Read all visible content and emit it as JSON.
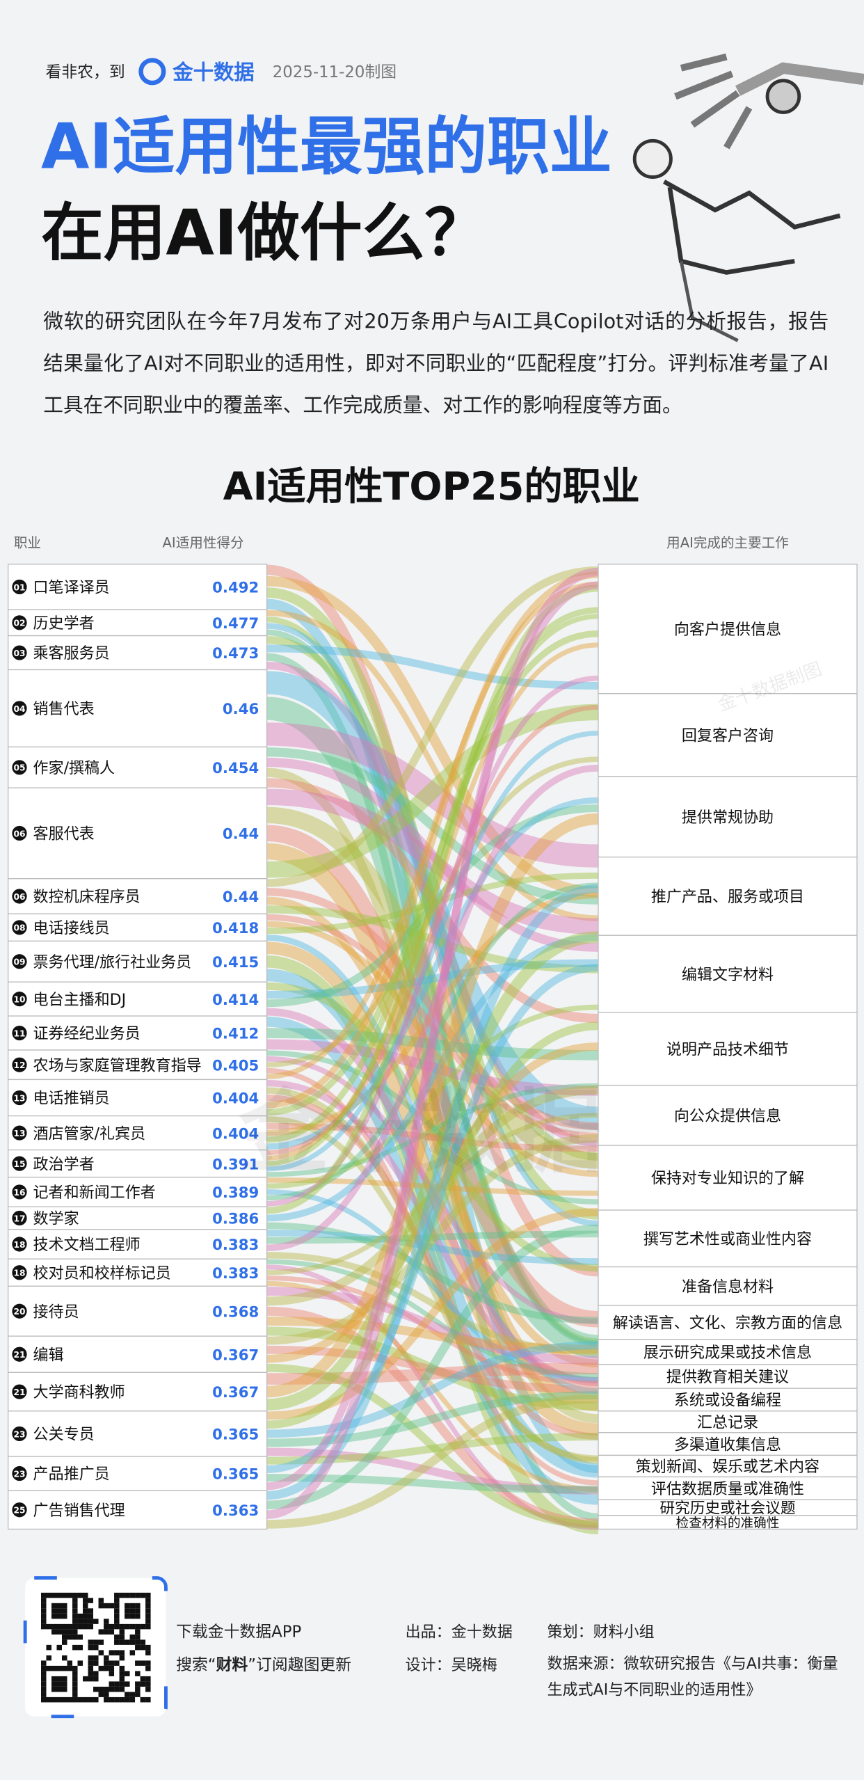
{
  "header": {
    "prefix": "看非农，到",
    "brand": "金十数据",
    "date": "2025-11-20制图"
  },
  "title": {
    "line1": "AI适用性最强的职业",
    "line2": "在用AI做什么？"
  },
  "description": "微软的研究团队在今年7月发布了对20万条用户与AI工具Copilot对话的分析报告，报告结果量化了AI对不同职业的适用性，即对不同职业的“匹配程度”打分。评判标准考量了AI工具在不同职业中的覆盖率、工作完成质量、对工作的影响程度等方面。",
  "chart": {
    "title": "AI适用性TOP25的职业",
    "occupation_header": "职业",
    "score_header": "AI适用性得分",
    "task_header": "用AI完成的主要工作",
    "occupations": [
      {
        "rank": "01",
        "name": "口笔译译员",
        "score": 0.492
      },
      {
        "rank": "02",
        "name": "历史学者",
        "score": 0.477
      },
      {
        "rank": "03",
        "name": "乘客服务员",
        "score": 0.473
      },
      {
        "rank": "04",
        "name": "销售代表",
        "score": 0.46
      },
      {
        "rank": "05",
        "name": "作家/撰稿人",
        "score": 0.454
      },
      {
        "rank": "06",
        "name": "客服代表",
        "score": 0.44
      },
      {
        "rank": "06",
        "name": "数控机床程序员",
        "score": 0.44
      },
      {
        "rank": "08",
        "name": "电话接线员",
        "score": 0.418
      },
      {
        "rank": "09",
        "name": "票务代理/旅行社业务员",
        "score": 0.415
      },
      {
        "rank": "10",
        "name": "电台主播和DJ",
        "score": 0.414
      },
      {
        "rank": "11",
        "name": "证券经纪业务员",
        "score": 0.412
      },
      {
        "rank": "12",
        "name": "农场与家庭管理教育指导",
        "score": 0.405
      },
      {
        "rank": "13",
        "name": "电话推销员",
        "score": 0.404
      },
      {
        "rank": "13",
        "name": "酒店管家/礼宾员",
        "score": 0.404
      },
      {
        "rank": "15",
        "name": "政治学者",
        "score": 0.391
      },
      {
        "rank": "16",
        "name": "记者和新闻工作者",
        "score": 0.389
      },
      {
        "rank": "17",
        "name": "数学家",
        "score": 0.386
      },
      {
        "rank": "18",
        "name": "技术文档工程师",
        "score": 0.383
      },
      {
        "rank": "18",
        "name": "校对员和校样标记员",
        "score": 0.383
      },
      {
        "rank": "20",
        "name": "接待员",
        "score": 0.368
      },
      {
        "rank": "21",
        "name": "编辑",
        "score": 0.367
      },
      {
        "rank": "21",
        "name": "大学商科教师",
        "score": 0.367
      },
      {
        "rank": "23",
        "name": "公关专员",
        "score": 0.365
      },
      {
        "rank": "23",
        "name": "产品推广员",
        "score": 0.365
      },
      {
        "rank": "25",
        "name": "广告销售代理",
        "score": 0.363
      }
    ],
    "tasks": [
      "向客户提供信息",
      "回复客户咨询",
      "提供常规协助",
      "推广产品、服务或项目",
      "编辑文字材料",
      "说明产品技术细节",
      "向公众提供信息",
      "保持对专业知识的了解",
      "撰写艺术性或商业性内容",
      "准备信息材料",
      "解读语言、文化、宗教方面的信息",
      "展示研究成果或技术信息",
      "提供教育相关建议",
      "系统或设备编程",
      "汇总记录",
      "多渠道收集信息",
      "策划新闻、娱乐或艺术内容",
      "评估数据质量或准确性",
      "研究历史或社会议题",
      "检查材料的准确性"
    ]
  },
  "watermark": {
    "large": "金十数据",
    "small": "金十数据制图"
  },
  "footer": {
    "download": "下载金十数据APP",
    "search_prefix": "搜索“",
    "search_bold": "财料",
    "search_suffix": "”订阅趣图更新",
    "producer": "出品：金十数据",
    "designer": "设计：吴晓梅",
    "planner": "策划：财料小组",
    "source": "数据来源：微软研究报告《与AI共事：衡量生成式AI与不同职业的适用性》"
  }
}
